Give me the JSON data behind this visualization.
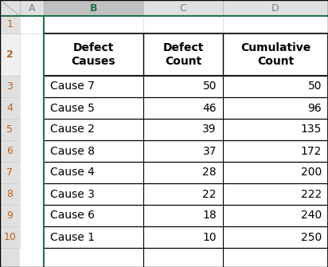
{
  "col_headers": [
    "A",
    "B",
    "C",
    "D"
  ],
  "row_numbers": [
    "1",
    "2",
    "3",
    "4",
    "5",
    "6",
    "7",
    "8",
    "9",
    "10"
  ],
  "header_row": [
    "Defect\nCauses",
    "Defect\nCount",
    "Cumulative\nCount"
  ],
  "data_rows": [
    [
      "Cause 7",
      "50",
      "50"
    ],
    [
      "Cause 5",
      "46",
      "96"
    ],
    [
      "Cause 2",
      "39",
      "135"
    ],
    [
      "Cause 8",
      "37",
      "172"
    ],
    [
      "Cause 4",
      "28",
      "200"
    ],
    [
      "Cause 3",
      "22",
      "222"
    ],
    [
      "Cause 6",
      "18",
      "240"
    ],
    [
      "Cause 1",
      "10",
      "250"
    ]
  ],
  "col_header_bg": "#e0e0e0",
  "selected_col_header_bg": "#c0c0c0",
  "selected_col_header_text": "#217346",
  "selected_col_bg": "#ffffff",
  "body_bg": "#ffffff",
  "row_num_color": "#c0621a",
  "col_header_color": "#808080",
  "border_light": "#d0d0d0",
  "border_dark": "#000000",
  "border_green": "#217346",
  "row2_bg": "#f0f0f0"
}
